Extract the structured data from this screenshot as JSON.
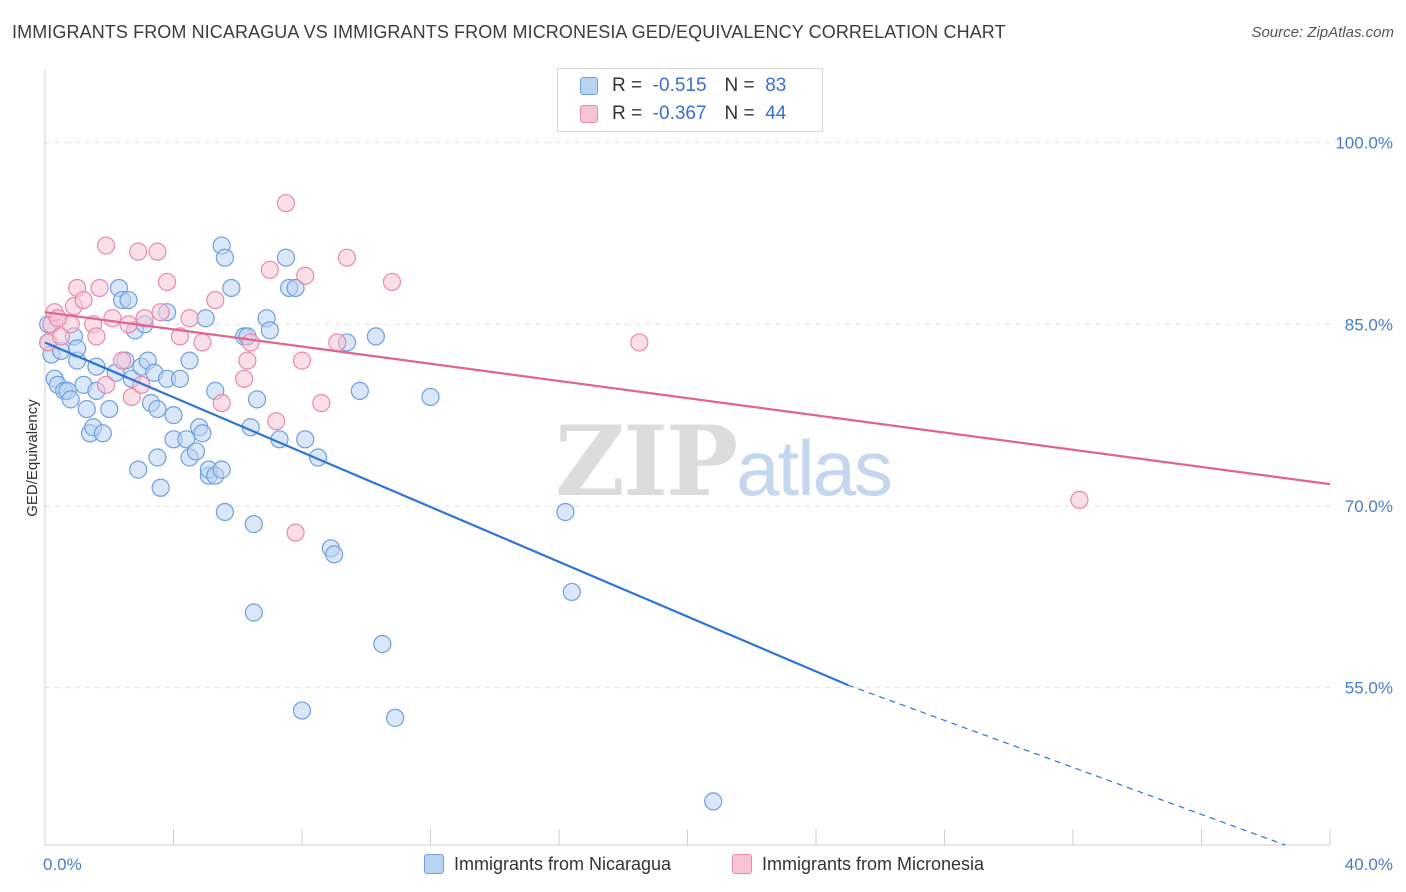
{
  "title": "IMMIGRANTS FROM NICARAGUA VS IMMIGRANTS FROM MICRONESIA GED/EQUIVALENCY CORRELATION CHART",
  "source": "Source: ZipAtlas.com",
  "watermark": {
    "zip": "ZIP",
    "atlas": "atlas"
  },
  "colors": {
    "nicaragua_fill": "#b9d3f3",
    "nicaragua_stroke": "#6f9fdc",
    "nicaragua_line": "#2f74d0",
    "micronesia_fill": "#f8c4d5",
    "micronesia_stroke": "#e88aaa",
    "micronesia_line": "#e0648f"
  },
  "legend": {
    "rows": [
      {
        "r_label": "R =",
        "r_value": "-0.515",
        "n_label": "N =",
        "n_value": "83"
      },
      {
        "r_label": "R =",
        "r_value": "-0.367",
        "n_label": "N =",
        "n_value": "44"
      }
    ]
  },
  "bottom_legend": [
    "Immigrants from Nicaragua",
    "Immigrants from Micronesia"
  ],
  "chart_data": {
    "type": "scatter",
    "title": "IMMIGRANTS FROM NICARAGUA VS IMMIGRANTS FROM MICRONESIA GED/EQUIVALENCY CORRELATION CHART",
    "xlabel": "",
    "ylabel": "GED/Equivalency",
    "xlim": [
      0,
      40
    ],
    "ylim": [
      42,
      106
    ],
    "x_tick_labels": [
      "0.0%",
      "40.0%"
    ],
    "y_ticks": [
      55,
      70,
      85,
      100
    ],
    "y_tick_labels": [
      "55.0%",
      "70.0%",
      "85.0%",
      "100.0%"
    ],
    "grid": true,
    "legend_position": "top-center",
    "series": [
      {
        "name": "Immigrants from Nicaragua",
        "r": -0.515,
        "n": 83,
        "trend": {
          "x0": 0,
          "y0": 83.5,
          "x1": 25,
          "y1": 55.2,
          "dashed_to_x": 38.6,
          "dashed_to_y": 42.0
        },
        "points": [
          [
            0.1,
            85
          ],
          [
            0.1,
            83.5
          ],
          [
            0.2,
            82.5
          ],
          [
            0.3,
            80.5
          ],
          [
            0.4,
            80
          ],
          [
            0.5,
            82.8
          ],
          [
            0.6,
            79.5
          ],
          [
            0.7,
            79.5
          ],
          [
            0.8,
            78.8
          ],
          [
            0.9,
            84
          ],
          [
            1.0,
            82
          ],
          [
            1.0,
            83
          ],
          [
            1.2,
            80
          ],
          [
            1.3,
            78
          ],
          [
            1.4,
            76
          ],
          [
            1.5,
            76.5
          ],
          [
            1.6,
            81.5
          ],
          [
            1.6,
            79.5
          ],
          [
            1.8,
            76
          ],
          [
            2.0,
            78
          ],
          [
            2.2,
            81
          ],
          [
            2.3,
            88
          ],
          [
            2.4,
            87
          ],
          [
            2.5,
            82
          ],
          [
            2.6,
            87
          ],
          [
            2.7,
            80.5
          ],
          [
            2.8,
            84.5
          ],
          [
            2.9,
            73
          ],
          [
            3.0,
            81.5
          ],
          [
            3.1,
            85
          ],
          [
            3.2,
            82
          ],
          [
            3.3,
            78.5
          ],
          [
            3.4,
            81
          ],
          [
            3.5,
            78
          ],
          [
            3.5,
            74
          ],
          [
            3.6,
            71.5
          ],
          [
            3.8,
            80.5
          ],
          [
            3.8,
            86
          ],
          [
            4.0,
            77.5
          ],
          [
            4.0,
            75.5
          ],
          [
            4.2,
            80.5
          ],
          [
            4.4,
            75.5
          ],
          [
            4.5,
            74
          ],
          [
            4.5,
            82
          ],
          [
            4.7,
            74.5
          ],
          [
            4.8,
            76.5
          ],
          [
            4.9,
            76
          ],
          [
            5.0,
            85.5
          ],
          [
            5.1,
            72.5
          ],
          [
            5.1,
            73
          ],
          [
            5.3,
            72.5
          ],
          [
            5.3,
            79.5
          ],
          [
            5.5,
            73
          ],
          [
            5.5,
            91.5
          ],
          [
            5.6,
            90.5
          ],
          [
            5.6,
            69.5
          ],
          [
            5.8,
            88
          ],
          [
            6.2,
            84
          ],
          [
            6.3,
            84
          ],
          [
            6.4,
            76.5
          ],
          [
            6.5,
            68.5
          ],
          [
            6.5,
            61.2
          ],
          [
            6.6,
            78.8
          ],
          [
            6.9,
            85.5
          ],
          [
            7.0,
            84.5
          ],
          [
            7.3,
            75.5
          ],
          [
            7.5,
            90.5
          ],
          [
            7.6,
            88
          ],
          [
            7.8,
            88
          ],
          [
            8.0,
            53.1
          ],
          [
            8.1,
            75.5
          ],
          [
            8.5,
            74
          ],
          [
            8.9,
            66.5
          ],
          [
            9.0,
            66
          ],
          [
            9.4,
            83.5
          ],
          [
            9.8,
            79.5
          ],
          [
            10.3,
            84
          ],
          [
            10.5,
            58.6
          ],
          [
            10.9,
            52.5
          ],
          [
            12.0,
            79
          ],
          [
            16.2,
            69.5
          ],
          [
            16.4,
            62.9
          ],
          [
            20.8,
            45.6
          ]
        ]
      },
      {
        "name": "Immigrants from Micronesia",
        "r": -0.367,
        "n": 44,
        "trend": {
          "x0": 0,
          "y0": 86.0,
          "x1": 40,
          "y1": 71.8
        },
        "points": [
          [
            0.1,
            83.5
          ],
          [
            0.2,
            85
          ],
          [
            0.3,
            86
          ],
          [
            0.5,
            84
          ],
          [
            0.8,
            85
          ],
          [
            0.9,
            86.5
          ],
          [
            1.0,
            88
          ],
          [
            1.2,
            87
          ],
          [
            1.5,
            85
          ],
          [
            1.6,
            84
          ],
          [
            1.7,
            88
          ],
          [
            1.9,
            80
          ],
          [
            1.9,
            91.5
          ],
          [
            2.1,
            85.5
          ],
          [
            2.4,
            82
          ],
          [
            2.6,
            85
          ],
          [
            2.7,
            79
          ],
          [
            2.9,
            91
          ],
          [
            3.0,
            80
          ],
          [
            3.1,
            85.5
          ],
          [
            3.5,
            91
          ],
          [
            3.6,
            86
          ],
          [
            3.8,
            88.5
          ],
          [
            4.2,
            84
          ],
          [
            4.5,
            85.5
          ],
          [
            4.9,
            83.5
          ],
          [
            5.3,
            87
          ],
          [
            5.5,
            78.5
          ],
          [
            6.2,
            80.5
          ],
          [
            6.3,
            82
          ],
          [
            6.4,
            83.5
          ],
          [
            7.0,
            89.5
          ],
          [
            7.2,
            77
          ],
          [
            7.5,
            95
          ],
          [
            7.8,
            67.8
          ],
          [
            8.0,
            82
          ],
          [
            8.1,
            89
          ],
          [
            8.6,
            78.5
          ],
          [
            9.1,
            83.5
          ],
          [
            9.4,
            90.5
          ],
          [
            10.8,
            88.5
          ],
          [
            18.5,
            83.5
          ],
          [
            32.2,
            70.5
          ],
          [
            0.4,
            85.5
          ]
        ]
      }
    ]
  }
}
